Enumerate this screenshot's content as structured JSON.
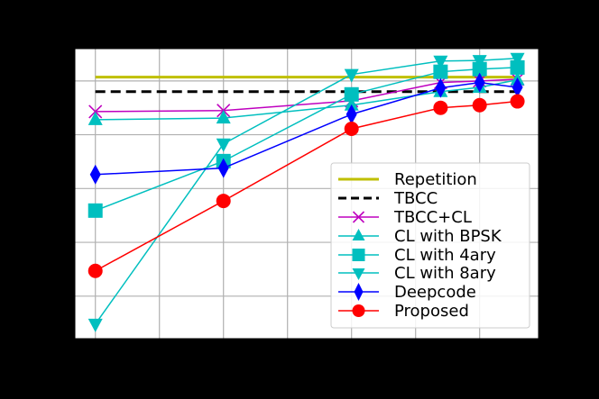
{
  "chart_data": {
    "type": "line",
    "title": "",
    "xlabel": "",
    "ylabel": "",
    "x_tick_labels_visible": false,
    "y_tick_labels_visible": false,
    "note": "Axis tick labels are rendered black on a black background and are not legible; values are expressed in grid-step units (x: vertical gridline index, y: horizontal gridline index from the lowest visible gridline).",
    "xlim": [
      -0.32,
      6.92
    ],
    "ylim": [
      -0.79,
      4.6
    ],
    "x_gridlines": [
      0,
      1,
      2,
      3,
      4,
      5,
      6
    ],
    "y_gridlines": [
      0,
      1,
      2,
      3,
      4
    ],
    "grid": true,
    "legend_position": "lower right",
    "x": [
      0,
      2,
      4,
      5.39,
      6,
      6.59
    ],
    "series": [
      {
        "name": "Repetition",
        "color": "#bfbf00",
        "style": "solid",
        "marker": "none",
        "width": 3,
        "values": [
          4.07,
          4.07,
          4.07,
          4.07,
          4.07,
          4.07
        ]
      },
      {
        "name": "TBCC",
        "color": "#000000",
        "style": "dashed",
        "marker": "none",
        "width": 3,
        "values": [
          3.8,
          3.8,
          3.8,
          3.8,
          3.8,
          3.8
        ]
      },
      {
        "name": "TBCC+CL",
        "color": "#bf00bf",
        "style": "solid",
        "marker": "x",
        "width": 1.5,
        "values": [
          3.43,
          3.45,
          3.63,
          3.97,
          4.0,
          4.03
        ]
      },
      {
        "name": "CL with BPSK",
        "color": "#00bfbf",
        "style": "solid",
        "marker": "triangle-up",
        "width": 1.5,
        "values": [
          3.28,
          3.31,
          3.55,
          3.8,
          3.88,
          4.02
        ]
      },
      {
        "name": "CL with 4ary",
        "color": "#00bfbf",
        "style": "solid",
        "marker": "square",
        "width": 1.5,
        "values": [
          1.59,
          2.51,
          3.75,
          4.17,
          4.22,
          4.25
        ]
      },
      {
        "name": "CL with 8ary",
        "color": "#00bfbf",
        "style": "solid",
        "marker": "triangle-down",
        "width": 1.5,
        "values": [
          -0.52,
          2.83,
          4.12,
          4.37,
          4.38,
          4.42
        ]
      },
      {
        "name": "Deepcode",
        "color": "#0000ff",
        "style": "solid",
        "marker": "diamond",
        "width": 1.5,
        "values": [
          2.26,
          2.38,
          3.38,
          3.87,
          3.97,
          3.88
        ]
      },
      {
        "name": "Proposed",
        "color": "#ff0000",
        "style": "solid",
        "marker": "circle",
        "width": 1.5,
        "values": [
          0.47,
          1.77,
          3.11,
          3.5,
          3.55,
          3.62
        ]
      }
    ]
  },
  "legend": {
    "items": [
      "Repetition",
      "TBCC",
      "TBCC+CL",
      "CL with BPSK",
      "CL with 4ary",
      "CL with 8ary",
      "Deepcode",
      "Proposed"
    ]
  },
  "colors": {
    "background": "#000000",
    "plot_background": "#ffffff",
    "grid": "#b0b0b0"
  }
}
